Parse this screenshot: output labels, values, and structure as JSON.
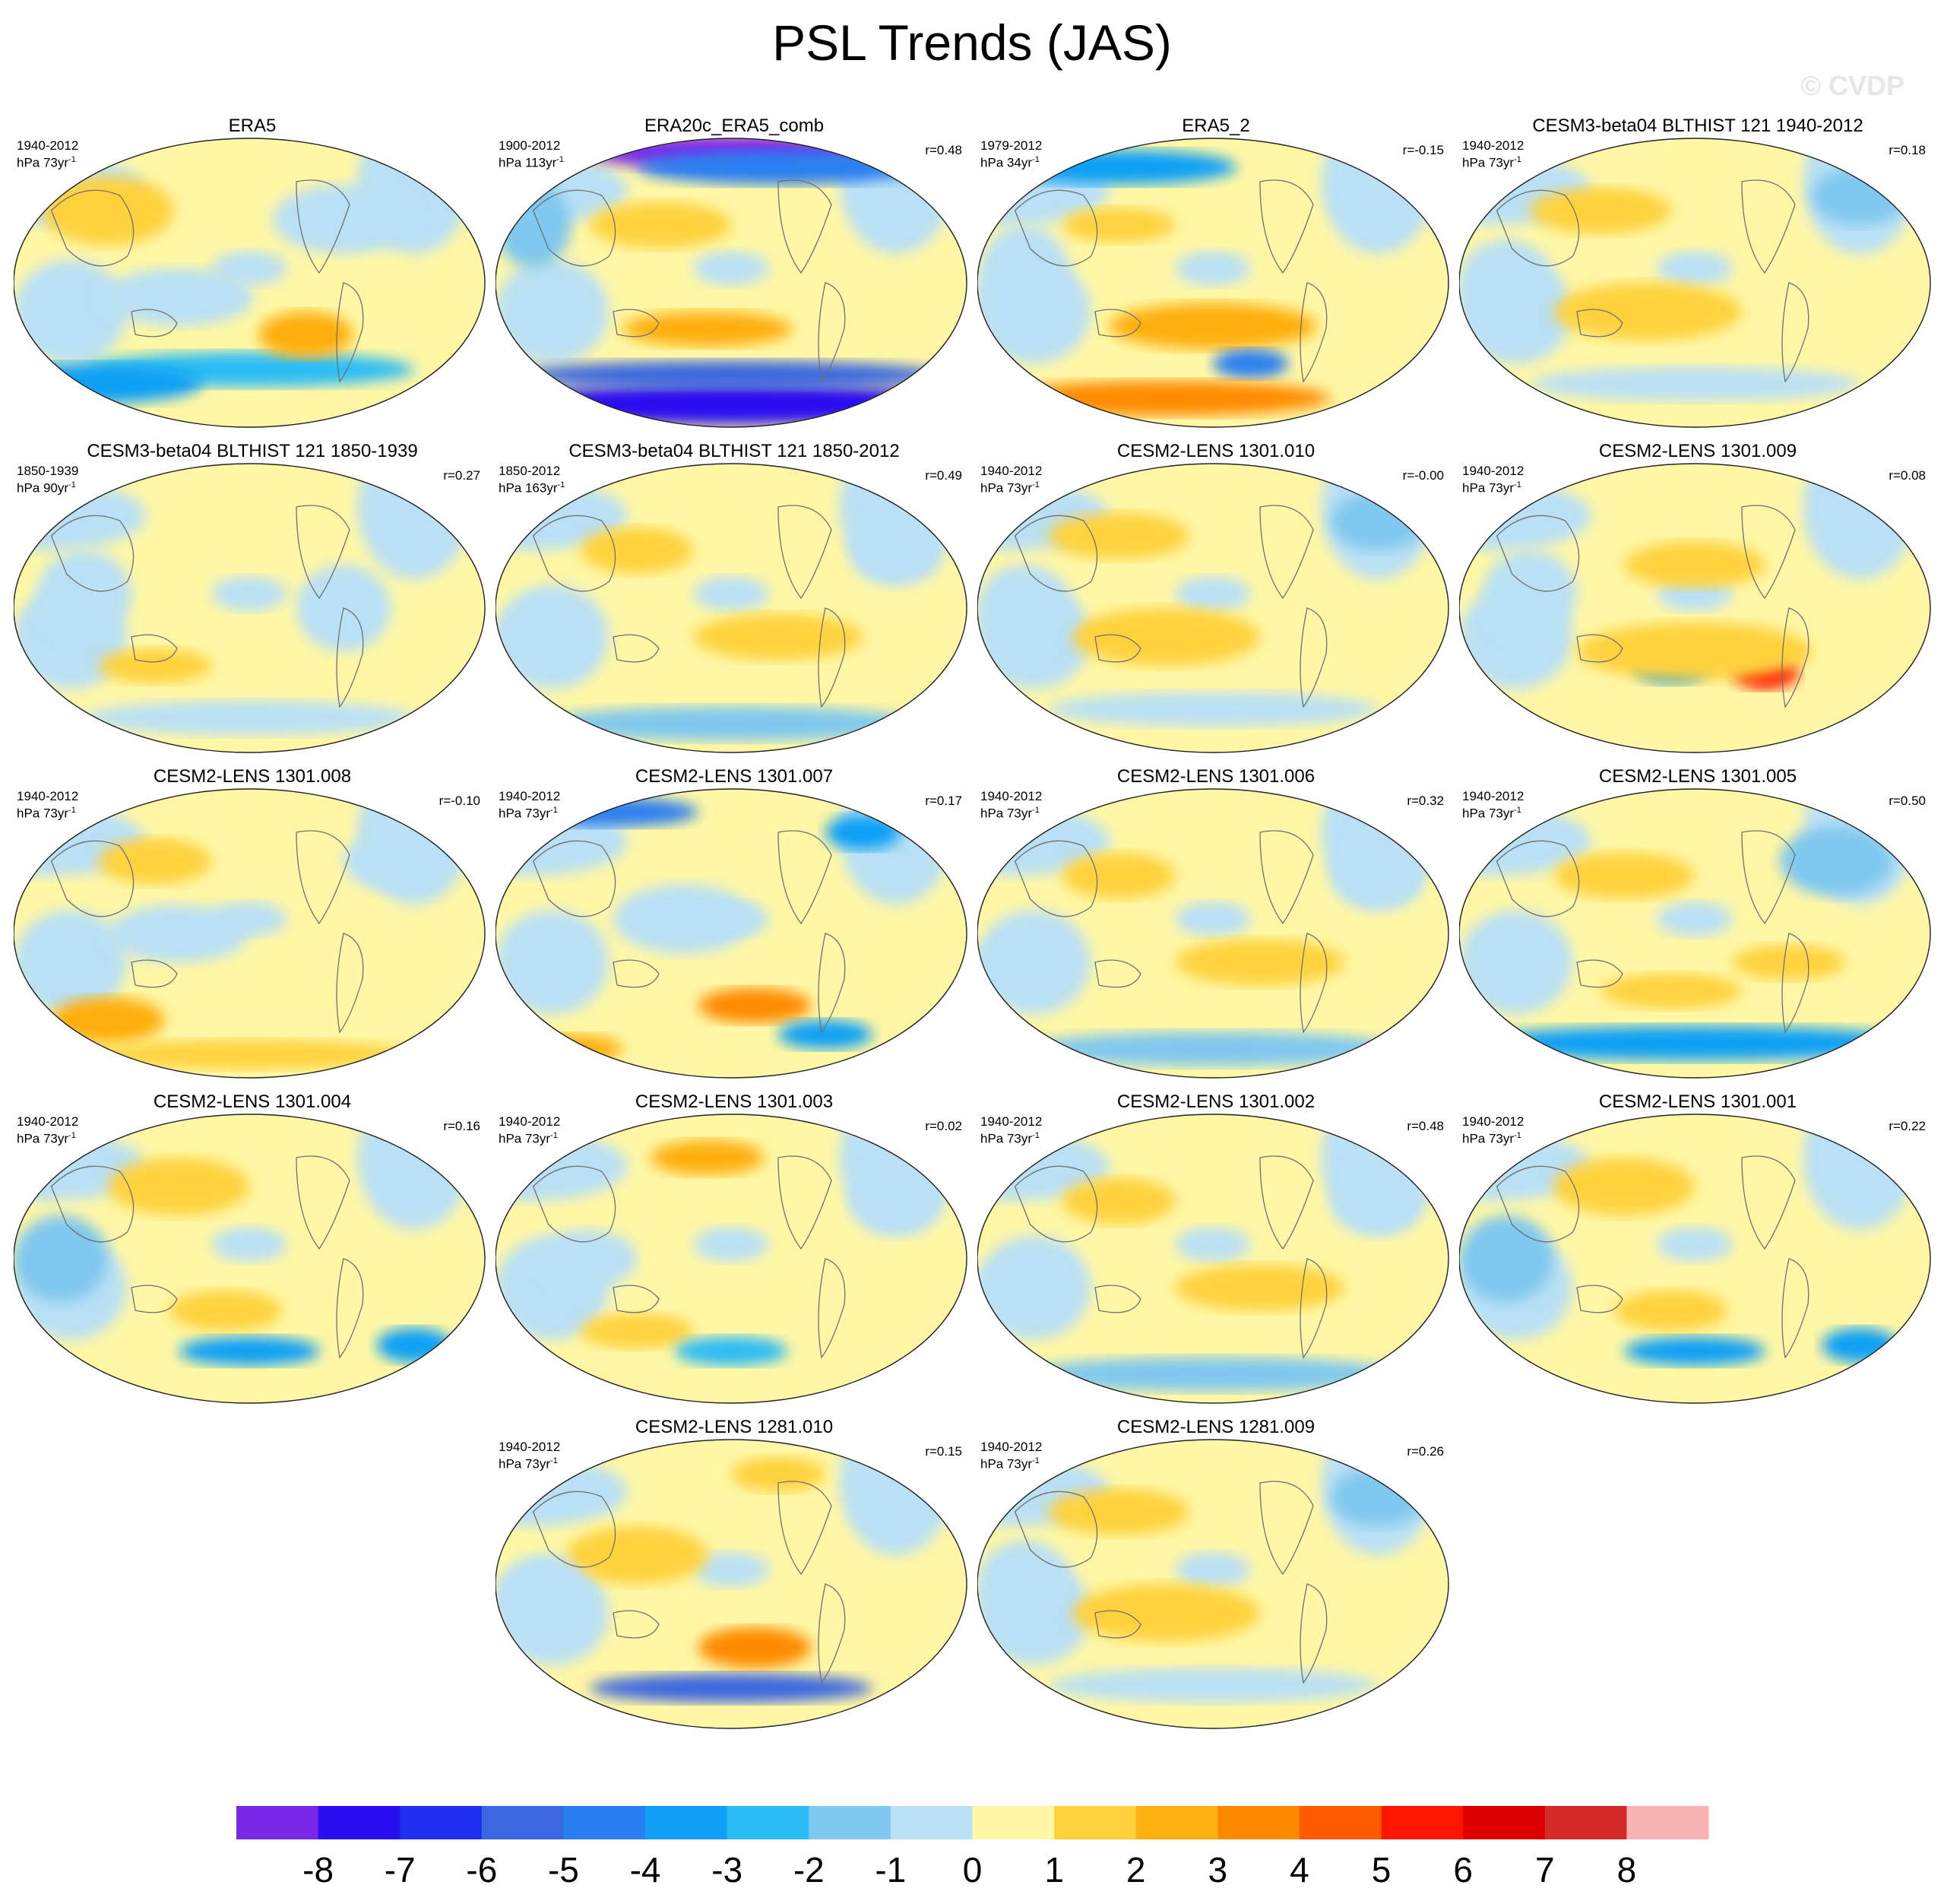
{
  "title": "PSL Trends (JAS)",
  "watermark": "© CVDP",
  "chart_data": {
    "type": "heatmap",
    "description_kind": "small-multiples of global sea level pressure trend maps",
    "colorbar": {
      "levels": [
        -8,
        -7,
        -6,
        -5,
        -4,
        -3,
        -2,
        -1,
        0,
        1,
        2,
        3,
        4,
        5,
        6,
        7,
        8
      ],
      "labels": [
        "-8",
        "-7",
        "-6",
        "-5",
        "-4",
        "-3",
        "-2",
        "-1",
        "0",
        "1",
        "2",
        "3",
        "4",
        "5",
        "6",
        "7",
        "8"
      ],
      "colors": [
        "#7b27e8",
        "#2a10f0",
        "#1d2ff0",
        "#3a66e0",
        "#2a7ff0",
        "#11a0f5",
        "#2cbcf5",
        "#7fc8ef",
        "#b9e0f5",
        "#fff7a6",
        "#ffd23c",
        "#ffaf0f",
        "#ff8a00",
        "#ff5a00",
        "#ff1500",
        "#dd0000",
        "#d42a2a",
        "#f9b3b3"
      ]
    },
    "panels": [
      {
        "title": "ERA5",
        "period": "1940-2012",
        "units": "hPa 73yr",
        "corr": "",
        "pattern": "era5"
      },
      {
        "title": "ERA20c_ERA5_comb",
        "period": "1900-2012",
        "units": "hPa 113yr",
        "corr": "r=0.48",
        "pattern": "era20c"
      },
      {
        "title": "ERA5_2",
        "period": "1979-2012",
        "units": "hPa 34yr",
        "corr": "r=-0.15",
        "pattern": "era5b"
      },
      {
        "title": "CESM3-beta04 BLTHIST 121 1940-2012",
        "period": "1940-2012",
        "units": "hPa 73yr",
        "corr": "r=0.18",
        "pattern": "weakpos"
      },
      {
        "title": "CESM3-beta04 BLTHIST 121 1850-1939",
        "period": "1850-1939",
        "units": "hPa 90yr",
        "corr": "r=0.27",
        "pattern": "weak"
      },
      {
        "title": "CESM3-beta04 BLTHIST 121 1850-2012",
        "period": "1850-2012",
        "units": "hPa 163yr",
        "corr": "r=0.49",
        "pattern": "weakneg"
      },
      {
        "title": "CESM2-LENS 1301.010",
        "period": "1940-2012",
        "units": "hPa 73yr",
        "corr": "r=-0.00",
        "pattern": "weakpos"
      },
      {
        "title": "CESM2-LENS 1301.009",
        "period": "1940-2012",
        "units": "hPa 73yr",
        "corr": "r=0.08",
        "pattern": "dipole"
      },
      {
        "title": "CESM2-LENS 1301.008",
        "period": "1940-2012",
        "units": "hPa 73yr",
        "corr": "r=-0.10",
        "pattern": "southpos"
      },
      {
        "title": "CESM2-LENS 1301.007",
        "period": "1940-2012",
        "units": "hPa 73yr",
        "corr": "r=0.17",
        "pattern": "southmix"
      },
      {
        "title": "CESM2-LENS 1301.006",
        "period": "1940-2012",
        "units": "hPa 73yr",
        "corr": "r=0.32",
        "pattern": "weakneg"
      },
      {
        "title": "CESM2-LENS 1301.005",
        "period": "1940-2012",
        "units": "hPa 73yr",
        "corr": "r=0.50",
        "pattern": "southneg"
      },
      {
        "title": "CESM2-LENS 1301.004",
        "period": "1940-2012",
        "units": "hPa 73yr",
        "corr": "r=0.16",
        "pattern": "midneg"
      },
      {
        "title": "CESM2-LENS 1301.003",
        "period": "1940-2012",
        "units": "hPa 73yr",
        "corr": "r=0.02",
        "pattern": "midneg2"
      },
      {
        "title": "CESM2-LENS 1301.002",
        "period": "1940-2012",
        "units": "hPa 73yr",
        "corr": "r=0.48",
        "pattern": "weakneg"
      },
      {
        "title": "CESM2-LENS 1301.001",
        "period": "1940-2012",
        "units": "hPa 73yr",
        "corr": "r=0.22",
        "pattern": "midneg"
      },
      {
        "title": "CESM2-LENS 1281.010",
        "period": "1940-2012",
        "units": "hPa 73yr",
        "corr": "r=0.15",
        "pattern": "strongsouth"
      },
      {
        "title": "CESM2-LENS 1281.009",
        "period": "1940-2012",
        "units": "hPa 73yr",
        "corr": "r=0.26",
        "pattern": "weakpos"
      }
    ]
  }
}
